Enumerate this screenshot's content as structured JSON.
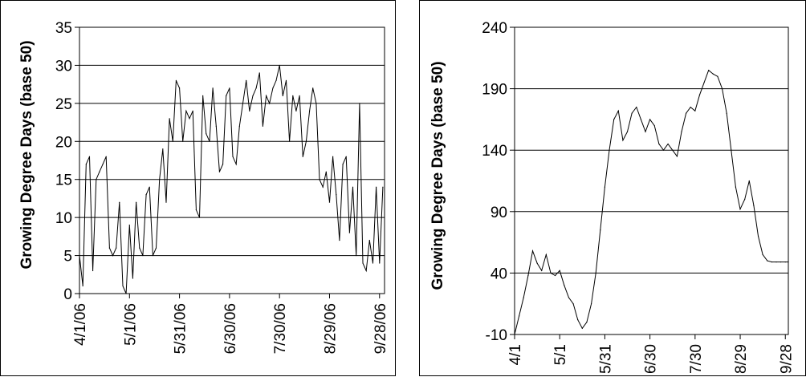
{
  "chart_data": [
    {
      "type": "line",
      "title": "",
      "xlabel": "",
      "ylabel": "Growing Degree Days (base 50)",
      "ylim": [
        0,
        35
      ],
      "yticks": [
        0,
        5,
        10,
        15,
        20,
        25,
        30,
        35
      ],
      "xlim": [
        "4/1/06",
        "10/1/06"
      ],
      "xtick_labels": [
        "4/1/06",
        "5/1/06",
        "5/31/06",
        "6/30/06",
        "7/30/06",
        "8/29/06",
        "9/28/06"
      ],
      "grid": "horizontal",
      "series": [
        {
          "x": [
            "4/1/06",
            "4/3/06",
            "4/5/06",
            "4/7/06",
            "4/9/06",
            "4/11/06",
            "4/13/06",
            "4/15/06",
            "4/17/06",
            "4/19/06",
            "4/21/06",
            "4/23/06",
            "4/25/06",
            "4/27/06",
            "4/29/06",
            "5/1/06",
            "5/3/06",
            "5/5/06",
            "5/7/06",
            "5/9/06",
            "5/11/06",
            "5/13/06",
            "5/15/06",
            "5/17/06",
            "5/19/06",
            "5/21/06",
            "5/23/06",
            "5/25/06",
            "5/27/06",
            "5/29/06",
            "5/31/06",
            "6/2/06",
            "6/4/06",
            "6/6/06",
            "6/8/06",
            "6/10/06",
            "6/12/06",
            "6/14/06",
            "6/16/06",
            "6/18/06",
            "6/20/06",
            "6/22/06",
            "6/24/06",
            "6/26/06",
            "6/28/06",
            "6/30/06",
            "7/2/06",
            "7/4/06",
            "7/6/06",
            "7/8/06",
            "7/10/06",
            "7/12/06",
            "7/14/06",
            "7/16/06",
            "7/18/06",
            "7/20/06",
            "7/22/06",
            "7/24/06",
            "7/26/06",
            "7/28/06",
            "7/30/06",
            "8/1/06",
            "8/3/06",
            "8/5/06",
            "8/7/06",
            "8/9/06",
            "8/11/06",
            "8/13/06",
            "8/15/06",
            "8/17/06",
            "8/19/06",
            "8/21/06",
            "8/23/06",
            "8/25/06",
            "8/27/06",
            "8/29/06",
            "8/31/06",
            "9/2/06",
            "9/4/06",
            "9/6/06",
            "9/8/06",
            "9/10/06",
            "9/12/06",
            "9/14/06",
            "9/16/06",
            "9/18/06",
            "9/20/06",
            "9/22/06",
            "9/24/06",
            "9/26/06",
            "9/28/06",
            "9/30/06"
          ],
          "values": [
            5,
            1,
            17,
            18,
            3,
            15,
            16,
            17,
            18,
            6,
            5,
            6,
            12,
            1,
            0,
            9,
            2,
            12,
            6,
            5,
            13,
            14,
            5,
            6,
            15,
            19,
            12,
            23,
            20,
            28,
            27,
            20,
            24,
            23,
            24,
            11,
            10,
            26,
            21,
            20,
            27,
            22,
            16,
            17,
            26,
            27,
            18,
            17,
            22,
            25,
            28,
            24,
            26,
            27,
            29,
            22,
            26,
            25,
            27,
            28,
            30,
            26,
            28,
            20,
            26,
            24,
            26,
            18,
            20,
            24,
            27,
            25,
            15,
            14,
            16,
            12,
            18,
            13,
            7,
            17,
            18,
            8,
            14,
            5,
            25,
            4,
            3,
            7,
            4,
            14,
            4,
            14
          ]
        }
      ]
    },
    {
      "type": "line",
      "title": "",
      "xlabel": "",
      "ylabel": "Growing Degree Days (base 50)",
      "ylim": [
        -10,
        240
      ],
      "yticks": [
        -10,
        40,
        90,
        140,
        190,
        240
      ],
      "xlim": [
        "4/1",
        "9/30"
      ],
      "xtick_labels": [
        "4/1",
        "5/1",
        "5/31",
        "6/30",
        "7/30",
        "8/29",
        "9/28"
      ],
      "grid": "horizontal",
      "series": [
        {
          "x": [
            "4/1",
            "4/4",
            "4/7",
            "4/10",
            "4/13",
            "4/16",
            "4/19",
            "4/22",
            "4/25",
            "4/28",
            "5/1",
            "5/4",
            "5/7",
            "5/10",
            "5/13",
            "5/16",
            "5/19",
            "5/22",
            "5/25",
            "5/28",
            "5/31",
            "6/3",
            "6/6",
            "6/9",
            "6/12",
            "6/15",
            "6/18",
            "6/21",
            "6/24",
            "6/27",
            "6/30",
            "7/3",
            "7/6",
            "7/9",
            "7/12",
            "7/15",
            "7/18",
            "7/21",
            "7/24",
            "7/27",
            "7/30",
            "8/2",
            "8/5",
            "8/8",
            "8/11",
            "8/14",
            "8/17",
            "8/20",
            "8/23",
            "8/26",
            "8/29",
            "9/1",
            "9/4",
            "9/7",
            "9/10",
            "9/13",
            "9/16",
            "9/19",
            "9/22",
            "9/25",
            "9/28",
            "9/30"
          ],
          "values": [
            -10,
            5,
            20,
            38,
            58,
            48,
            42,
            55,
            40,
            38,
            42,
            30,
            20,
            15,
            2,
            -5,
            0,
            15,
            40,
            75,
            110,
            140,
            165,
            172,
            148,
            155,
            170,
            175,
            165,
            155,
            165,
            160,
            145,
            140,
            145,
            140,
            135,
            155,
            170,
            175,
            172,
            185,
            195,
            205,
            202,
            200,
            190,
            170,
            140,
            110,
            92,
            100,
            115,
            95,
            70,
            55,
            50,
            49,
            49,
            49,
            49,
            49
          ]
        }
      ]
    }
  ]
}
